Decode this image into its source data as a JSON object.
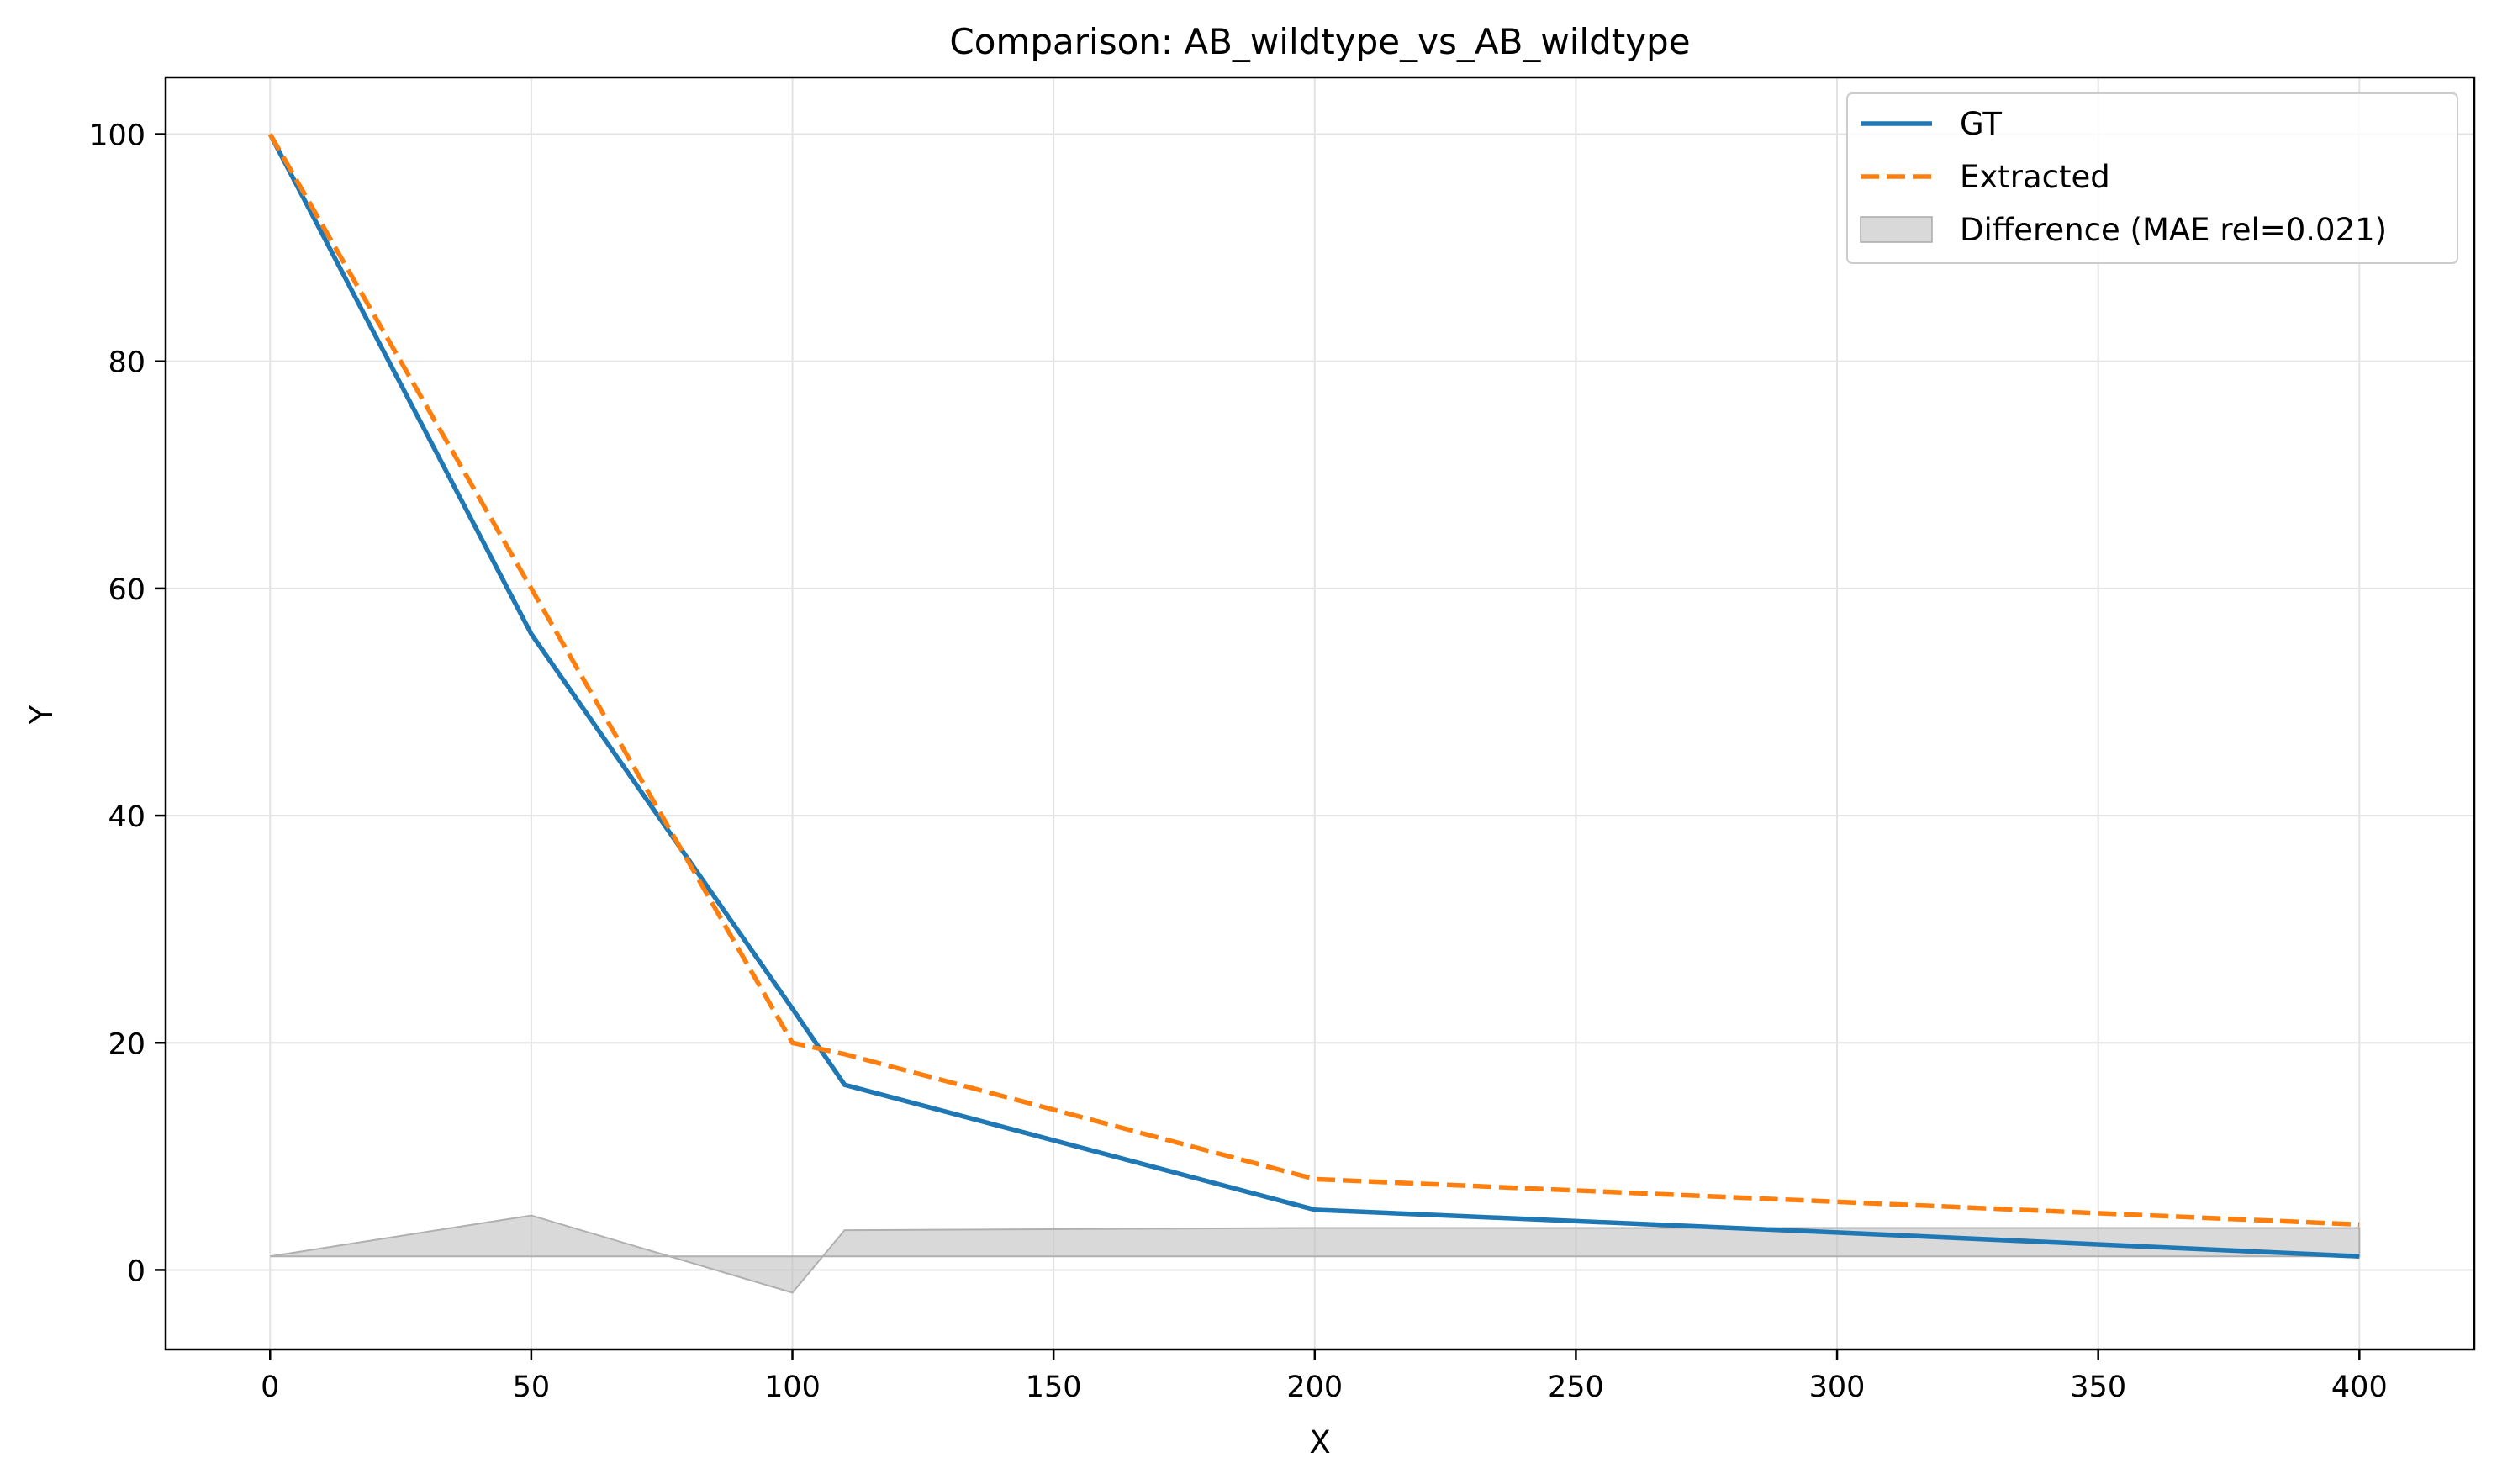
{
  "chart_data": {
    "type": "line",
    "title": "Comparison: AB_wildtype_vs_AB_wildtype",
    "xlabel": "X",
    "ylabel": "Y",
    "xlim": [
      -20,
      422
    ],
    "ylim": [
      -7,
      105
    ],
    "xticks": [
      0,
      50,
      100,
      150,
      200,
      250,
      300,
      350,
      400
    ],
    "yticks": [
      0,
      20,
      40,
      60,
      80,
      100
    ],
    "grid": true,
    "legend_position": "top-right",
    "series": [
      {
        "name": "GT",
        "color": "#1f77b4",
        "style": "solid",
        "points": [
          [
            0,
            100
          ],
          [
            50,
            56
          ],
          [
            100,
            23
          ],
          [
            110,
            16.3
          ],
          [
            200,
            5.3
          ],
          [
            300,
            3.3
          ],
          [
            400,
            1.2
          ]
        ]
      },
      {
        "name": "Extracted",
        "color": "#ff7f0e",
        "style": "dashed",
        "points": [
          [
            0,
            100
          ],
          [
            50,
            60
          ],
          [
            100,
            20
          ],
          [
            110,
            19
          ],
          [
            200,
            8
          ],
          [
            300,
            6
          ],
          [
            400,
            4
          ]
        ]
      }
    ],
    "difference": {
      "name": "Difference (MAE rel=0.021)",
      "color": "#bfbfbf",
      "baseline": 1.2,
      "points": [
        [
          0,
          1.2
        ],
        [
          50,
          4.8
        ],
        [
          100,
          -2
        ],
        [
          110,
          3.5
        ],
        [
          200,
          3.7
        ],
        [
          400,
          3.7
        ]
      ]
    }
  }
}
